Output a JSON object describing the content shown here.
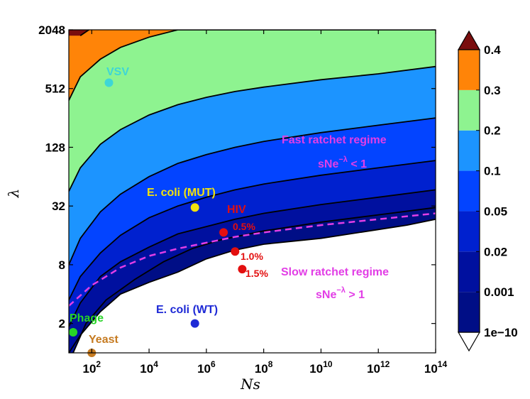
{
  "chart_data": {
    "type": "contourf",
    "x_axis": {
      "label": "Ns",
      "scale": "log10",
      "range_log10": [
        1.2,
        14
      ],
      "ticks": [
        {
          "log10": 2,
          "base": "10",
          "exp": "2"
        },
        {
          "log10": 4,
          "base": "10",
          "exp": "4"
        },
        {
          "log10": 6,
          "base": "10",
          "exp": "6"
        },
        {
          "log10": 8,
          "base": "10",
          "exp": "8"
        },
        {
          "log10": 10,
          "base": "10",
          "exp": "10"
        },
        {
          "log10": 12,
          "base": "10",
          "exp": "12"
        },
        {
          "log10": 14,
          "base": "10",
          "exp": "14"
        }
      ]
    },
    "y_axis": {
      "label": "λ",
      "scale": "log2",
      "range_log2": [
        0,
        11
      ],
      "ticks": [
        {
          "log2": 1,
          "label": "2"
        },
        {
          "log2": 3,
          "label": "8"
        },
        {
          "log2": 5,
          "label": "32"
        },
        {
          "log2": 7,
          "label": "128"
        },
        {
          "log2": 9,
          "label": "512"
        },
        {
          "log2": 11,
          "label": "2048"
        }
      ]
    },
    "colorbar": {
      "levels": [
        "1e−10",
        "0.001",
        "0.02",
        "0.05",
        "0.1",
        "0.2",
        "0.3",
        "0.4"
      ],
      "colors": [
        "#ffffff",
        "#000e86",
        "#00109f",
        "#0021cf",
        "#0344ff",
        "#1c94ff",
        "#8ef390",
        "#ff8408",
        "#7a0e0e"
      ]
    },
    "contours": [
      {
        "level": "1e−10",
        "boundary": [
          [
            1.2,
            0
          ],
          [
            1.6,
            0.6
          ],
          [
            2.3,
            1.4
          ],
          [
            3,
            2.0
          ],
          [
            4,
            2.4
          ],
          [
            5,
            2.75
          ],
          [
            6,
            3.2
          ],
          [
            7,
            3.5
          ],
          [
            8,
            3.7
          ],
          [
            9,
            3.8
          ],
          [
            10,
            3.9
          ],
          [
            11,
            4.05
          ],
          [
            12,
            4.2
          ],
          [
            13,
            4.35
          ],
          [
            14,
            4.55
          ]
        ]
      },
      {
        "level": "0.001",
        "boundary": [
          [
            1.35,
            0
          ],
          [
            1.8,
            1.0
          ],
          [
            2.5,
            1.8
          ],
          [
            3.5,
            2.5
          ],
          [
            4.5,
            3.1
          ],
          [
            5.5,
            3.55
          ],
          [
            6.5,
            3.85
          ],
          [
            8,
            4.15
          ],
          [
            10,
            4.45
          ],
          [
            12,
            4.7
          ],
          [
            14,
            4.95
          ]
        ]
      },
      {
        "level": "0.02",
        "boundary": [
          [
            1.2,
            0.9
          ],
          [
            1.6,
            1.7
          ],
          [
            2.3,
            2.6
          ],
          [
            3,
            3.1
          ],
          [
            4,
            3.6
          ],
          [
            5,
            4.05
          ],
          [
            6,
            4.3
          ],
          [
            7,
            4.55
          ],
          [
            8,
            4.75
          ],
          [
            10,
            5.05
          ],
          [
            12,
            5.3
          ],
          [
            14,
            5.55
          ]
        ]
      },
      {
        "level": "0.05",
        "boundary": [
          [
            1.2,
            1.8
          ],
          [
            1.6,
            2.6
          ],
          [
            2.3,
            3.4
          ],
          [
            3,
            4.0
          ],
          [
            4,
            4.6
          ],
          [
            5,
            5.0
          ],
          [
            6,
            5.3
          ],
          [
            7,
            5.55
          ],
          [
            8,
            5.75
          ],
          [
            10,
            6.05
          ],
          [
            12,
            6.3
          ],
          [
            14,
            6.55
          ]
        ]
      },
      {
        "level": "0.1",
        "boundary": [
          [
            1.2,
            3.0
          ],
          [
            1.6,
            3.9
          ],
          [
            2.3,
            4.8
          ],
          [
            3,
            5.4
          ],
          [
            4,
            6.0
          ],
          [
            5,
            6.45
          ],
          [
            6,
            6.75
          ],
          [
            7,
            7.0
          ],
          [
            8,
            7.2
          ],
          [
            10,
            7.5
          ],
          [
            12,
            7.75
          ],
          [
            14,
            8.0
          ]
        ]
      },
      {
        "level": "0.2",
        "boundary": [
          [
            1.2,
            5.5
          ],
          [
            1.6,
            6.3
          ],
          [
            2.3,
            7.1
          ],
          [
            3,
            7.6
          ],
          [
            4,
            8.1
          ],
          [
            5,
            8.45
          ],
          [
            6,
            8.7
          ],
          [
            7,
            8.9
          ],
          [
            8,
            9.05
          ],
          [
            10,
            9.3
          ],
          [
            12,
            9.5
          ],
          [
            14,
            9.75
          ]
        ]
      },
      {
        "level": "0.3",
        "boundary": [
          [
            1.2,
            8.6
          ],
          [
            1.6,
            9.4
          ],
          [
            2.3,
            10.0
          ],
          [
            3,
            10.4
          ],
          [
            4,
            10.75
          ],
          [
            5,
            11.0
          ],
          [
            14,
            11.0
          ]
        ]
      },
      {
        "level": "0.4",
        "boundary": [
          [
            1.6,
            10.8
          ],
          [
            1.9,
            11.0
          ]
        ]
      }
    ],
    "threshold_line": {
      "style": "dashed",
      "color": "#e23ee6",
      "points": [
        [
          1.2,
          1.6
        ],
        [
          2,
          2.3
        ],
        [
          3,
          2.9
        ],
        [
          4,
          3.3
        ],
        [
          5,
          3.55
        ],
        [
          6,
          3.75
        ],
        [
          7,
          3.95
        ],
        [
          8,
          4.1
        ],
        [
          10,
          4.35
        ],
        [
          12,
          4.55
        ],
        [
          14,
          4.75
        ]
      ]
    },
    "points": [
      {
        "name": "VSV",
        "log10_Ns": 2.6,
        "log2_lambda": 9.2,
        "color": "#3ed6d6"
      },
      {
        "name": "E. coli (MUT)",
        "log10_Ns": 5.6,
        "log2_lambda": 4.95,
        "color": "#f2e20c"
      },
      {
        "name": "HIV 0.5%",
        "log10_Ns": 6.6,
        "log2_lambda": 4.1,
        "color": "#e30f0f"
      },
      {
        "name": "HIV 1.0%",
        "log10_Ns": 7.0,
        "log2_lambda": 3.45,
        "color": "#e30f0f"
      },
      {
        "name": "HIV 1.5%",
        "log10_Ns": 7.25,
        "log2_lambda": 2.85,
        "color": "#e30f0f"
      },
      {
        "name": "E. coli (WT)",
        "log10_Ns": 5.6,
        "log2_lambda": 1.0,
        "color": "#1e2ad6"
      },
      {
        "name": "Phage",
        "log10_Ns": 1.35,
        "log2_lambda": 0.7,
        "color": "#27d427"
      },
      {
        "name": "Yeast",
        "log10_Ns": 2.0,
        "log2_lambda": 0.0,
        "color": "#c67b21"
      }
    ],
    "labels": {
      "vsv": "VSV",
      "ecoli_mut": "E. coli (MUT)",
      "hiv": "HIV",
      "pct_05": "0.5%",
      "pct_10": "1.0%",
      "pct_15": "1.5%",
      "ecoli_wt": "E. coli (WT)",
      "phage": "Phage",
      "yeast": "Yeast"
    },
    "annotations": {
      "fast_title": "Fast ratchet regime",
      "fast_cond_main": "sNe",
      "fast_cond_exp": "−λ",
      "fast_cond_rel": " < 1",
      "slow_title": "Slow ratchet regime",
      "slow_cond_main": "sNe",
      "slow_cond_exp": "−λ",
      "slow_cond_rel": " > 1",
      "annotation_color": "#e23ee6"
    }
  }
}
